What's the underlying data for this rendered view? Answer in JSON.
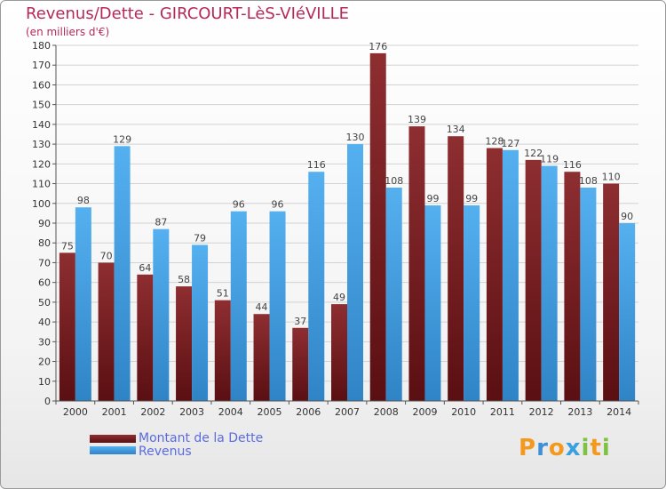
{
  "title": "Revenus/Dette - GIRCOURT-LèS-VIéVILLE",
  "subtitle": "(en milliers d'€)",
  "brand": "Proxiti",
  "colors": {
    "dette": "#7a2325",
    "revenus": "#4aa2e3",
    "title": "#b5295a",
    "legend_text": "#5a6be0"
  },
  "chart_data": {
    "type": "bar",
    "categories": [
      "2000",
      "2001",
      "2002",
      "2003",
      "2004",
      "2005",
      "2006",
      "2007",
      "2008",
      "2009",
      "2010",
      "2011",
      "2012",
      "2013",
      "2014"
    ],
    "series": [
      {
        "name": "Montant de la Dette",
        "values": [
          75,
          70,
          64,
          58,
          51,
          44,
          37,
          49,
          176,
          139,
          134,
          128,
          122,
          116,
          110
        ]
      },
      {
        "name": "Revenus",
        "values": [
          98,
          129,
          87,
          79,
          96,
          96,
          116,
          130,
          108,
          99,
          99,
          127,
          119,
          108,
          90
        ]
      }
    ],
    "ylim": [
      0,
      180
    ],
    "yticks": [
      0,
      10,
      20,
      30,
      40,
      50,
      60,
      70,
      80,
      90,
      100,
      110,
      120,
      130,
      140,
      150,
      160,
      170,
      180
    ],
    "grid": true,
    "legend": "bottom-left"
  }
}
